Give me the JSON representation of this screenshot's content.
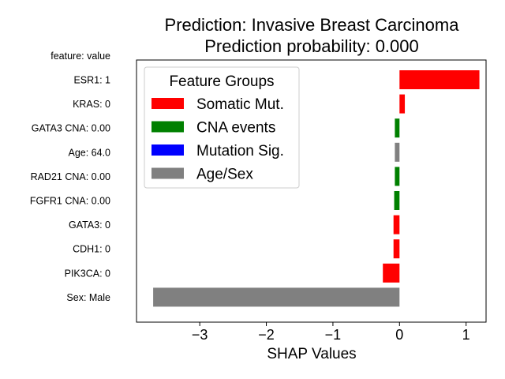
{
  "chart_data": {
    "type": "bar",
    "orientation": "horizontal",
    "title_line1": "Prediction: Invasive Breast Carcinoma",
    "title_line2": "Prediction probability: 0.000",
    "ylabel_header": "feature: value",
    "xlabel": "SHAP Values",
    "xlim": [
      -3.95,
      1.3
    ],
    "xticks": [
      {
        "value": -3,
        "label": "−3"
      },
      {
        "value": -2,
        "label": "−2"
      },
      {
        "value": -1,
        "label": "−1"
      },
      {
        "value": 0,
        "label": "0"
      },
      {
        "value": 1,
        "label": "1"
      }
    ],
    "grid": false,
    "legend": {
      "title": "Feature Groups",
      "placement": "upper-left",
      "entries": [
        {
          "label": "Somatic Mut.",
          "color": "#ff0000"
        },
        {
          "label": "CNA events",
          "color": "#008000"
        },
        {
          "label": "Mutation Sig.",
          "color": "#0000ff"
        },
        {
          "label": "Age/Sex",
          "color": "#808080"
        }
      ]
    },
    "bars": [
      {
        "feature": "ESR1: 1",
        "value": 1.2,
        "group": "Somatic Mut.",
        "color": "#ff0000"
      },
      {
        "feature": "KRAS: 0",
        "value": 0.08,
        "group": "Somatic Mut.",
        "color": "#ff0000"
      },
      {
        "feature": "GATA3 CNA: 0.00",
        "value": -0.07,
        "group": "CNA events",
        "color": "#008000"
      },
      {
        "feature": "Age: 64.0",
        "value": -0.07,
        "group": "Age/Sex",
        "color": "#808080"
      },
      {
        "feature": "RAD21 CNA: 0.00",
        "value": -0.07,
        "group": "CNA events",
        "color": "#008000"
      },
      {
        "feature": "FGFR1 CNA: 0.00",
        "value": -0.08,
        "group": "CNA events",
        "color": "#008000"
      },
      {
        "feature": "GATA3: 0",
        "value": -0.09,
        "group": "Somatic Mut.",
        "color": "#ff0000"
      },
      {
        "feature": "CDH1: 0",
        "value": -0.09,
        "group": "Somatic Mut.",
        "color": "#ff0000"
      },
      {
        "feature": "PIK3CA: 0",
        "value": -0.25,
        "group": "Somatic Mut.",
        "color": "#ff0000"
      },
      {
        "feature": "Sex: Male",
        "value": -3.7,
        "group": "Age/Sex",
        "color": "#808080"
      }
    ]
  }
}
